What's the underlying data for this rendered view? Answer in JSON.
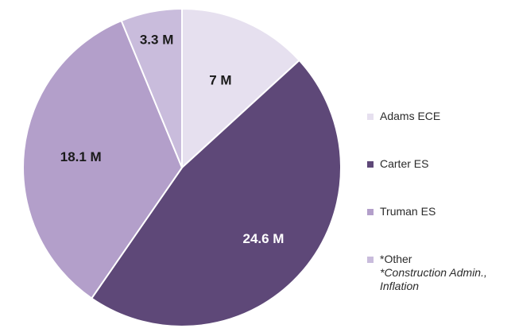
{
  "chart_data": {
    "type": "pie",
    "slices": [
      {
        "name": "Adams ECE",
        "value": 7,
        "label": "7 M",
        "color": "#e6e0ef",
        "label_color": "#1a1a1a"
      },
      {
        "name": "Carter ES",
        "value": 24.6,
        "label": "24.6 M",
        "color": "#5e4878",
        "label_color": "#ffffff"
      },
      {
        "name": "Truman ES",
        "value": 18.1,
        "label": "18.1 M",
        "color": "#b39fca",
        "label_color": "#1a1a1a"
      },
      {
        "name": "*Other",
        "value": 3.3,
        "label": "3.3 M",
        "color": "#c9bcdc",
        "label_color": "#1a1a1a"
      }
    ],
    "legend": {
      "position": "right",
      "items": [
        {
          "label": "Adams ECE",
          "color": "#e6e0ef"
        },
        {
          "label": "Carter ES",
          "color": "#5e4878"
        },
        {
          "label": "Truman ES",
          "color": "#b39fca"
        },
        {
          "label": "*Other",
          "note_line1": "*Construction Admin.,",
          "note_line2": "Inflation",
          "color": "#c9bcdc"
        }
      ]
    },
    "start_angle_deg": 0,
    "direction": "clockwise"
  }
}
